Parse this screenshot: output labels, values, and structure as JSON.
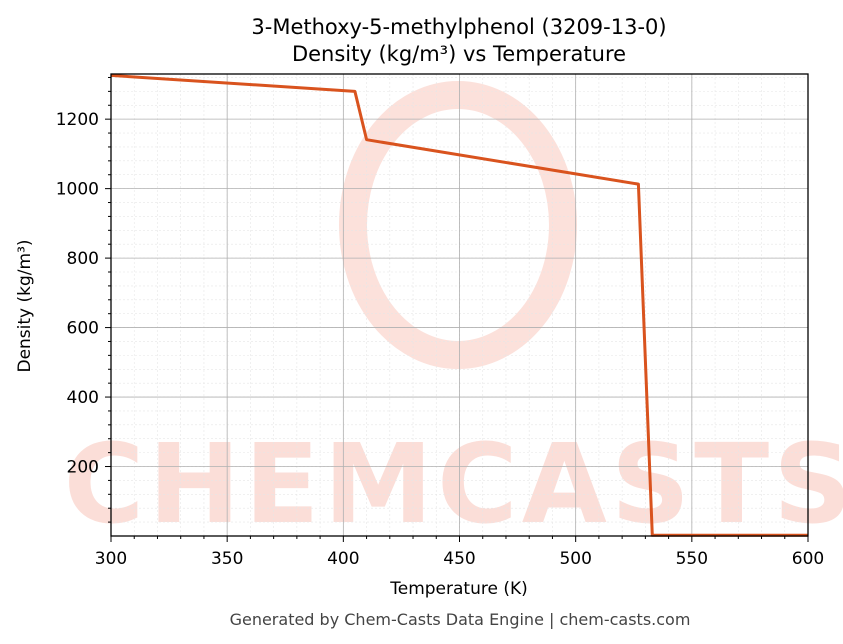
{
  "chart_data": {
    "type": "line",
    "title": [
      "3-Methoxy-5-methylphenol (3209-13-0)",
      "Density (kg/m³) vs Temperature"
    ],
    "xlabel": "Temperature (K)",
    "ylabel": "Density (kg/m³)",
    "xlim": [
      300,
      600
    ],
    "ylim": [
      0,
      1330
    ],
    "xticks": [
      300,
      350,
      400,
      450,
      500,
      550,
      600
    ],
    "yticks": [
      200,
      400,
      600,
      800,
      1000,
      1200
    ],
    "grid": true,
    "series": [
      {
        "color": "#d9531e",
        "x": [
          300,
          405,
          410,
          527,
          533,
          600
        ],
        "y": [
          1326,
          1280,
          1141,
          1013,
          2,
          2
        ]
      }
    ]
  },
  "watermark": "CHEMCASTS",
  "footer": "Generated by Chem-Casts Data Engine | chem-casts.com"
}
